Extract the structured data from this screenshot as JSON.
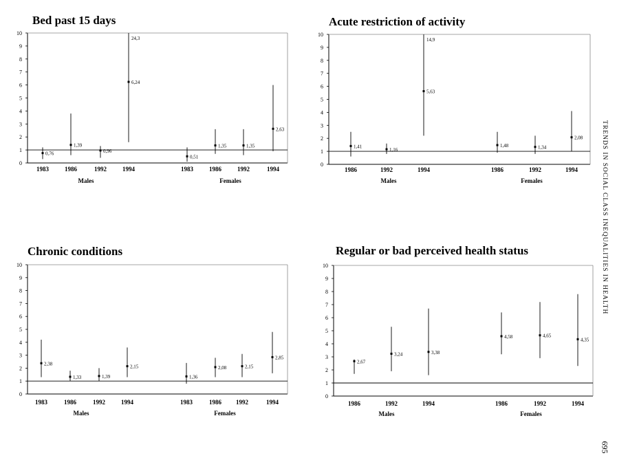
{
  "side_text": "TRENDS IN SOCIAL CLASS INEQUALITIES IN HEALTH",
  "page_number": "695",
  "chart_data": [
    {
      "type": "scatter",
      "title": "Bed past 15 days",
      "ylim": [
        0,
        10
      ],
      "yticks": [
        "0",
        "1",
        "2",
        "3",
        "4",
        "5",
        "6",
        "7",
        "8",
        "9",
        "10"
      ],
      "reference_line": 1,
      "groups": [
        {
          "name": "Males"
        },
        {
          "name": "Females"
        }
      ],
      "points": [
        {
          "group": "Males",
          "year": "1983",
          "value": 0.76,
          "label": "0,76",
          "low": 0.3,
          "high": 1.2
        },
        {
          "group": "Males",
          "year": "1986",
          "value": 1.39,
          "label": "1,39",
          "low": 0.6,
          "high": 3.8
        },
        {
          "group": "Males",
          "year": "1992",
          "value": 0.96,
          "label": "0,96",
          "low": 0.4,
          "high": 1.3
        },
        {
          "group": "Males",
          "year": "1994",
          "value": 6.24,
          "label": "6,24",
          "low": 1.6,
          "high": 10,
          "top_label": "24,3"
        },
        {
          "group": "Females",
          "year": "1983",
          "value": 0.51,
          "label": "0,51",
          "low": 0.1,
          "high": 1.2
        },
        {
          "group": "Females",
          "year": "1986",
          "value": 1.35,
          "label": "1,35",
          "low": 0.7,
          "high": 2.6
        },
        {
          "group": "Females",
          "year": "1992",
          "value": 1.35,
          "label": "1,35",
          "low": 0.6,
          "high": 2.6
        },
        {
          "group": "Females",
          "year": "1994",
          "value": 2.63,
          "label": "2,63",
          "low": 0.9,
          "high": 6.0
        }
      ]
    },
    {
      "type": "scatter",
      "title": "Acute restriction of activity",
      "ylim": [
        0,
        10
      ],
      "yticks": [
        "0",
        "1",
        "2",
        "3",
        "4",
        "5",
        "6",
        "7",
        "8",
        "9",
        "10"
      ],
      "reference_line": 1,
      "groups": [
        {
          "name": "Males"
        },
        {
          "name": "Females"
        }
      ],
      "points": [
        {
          "group": "Males",
          "year": "1986",
          "value": 1.41,
          "label": "1,41",
          "low": 0.6,
          "high": 2.5
        },
        {
          "group": "Males",
          "year": "1992",
          "value": 1.16,
          "label": "1,16",
          "low": 0.8,
          "high": 1.6
        },
        {
          "group": "Males",
          "year": "1994",
          "value": 5.63,
          "label": "5,63",
          "low": 2.2,
          "high": 10,
          "top_label": "14,9"
        },
        {
          "group": "Females",
          "year": "1986",
          "value": 1.48,
          "label": "1,48",
          "low": 0.9,
          "high": 2.5
        },
        {
          "group": "Females",
          "year": "1992",
          "value": 1.34,
          "label": "1,34",
          "low": 0.8,
          "high": 2.2
        },
        {
          "group": "Females",
          "year": "1994",
          "value": 2.08,
          "label": "2,08",
          "low": 1.0,
          "high": 4.1
        }
      ]
    },
    {
      "type": "scatter",
      "title": "Chronic conditions",
      "ylim": [
        0,
        10
      ],
      "yticks": [
        "0",
        "1",
        "2",
        "3",
        "4",
        "5",
        "6",
        "7",
        "8",
        "9",
        "10"
      ],
      "reference_line": 1,
      "groups": [
        {
          "name": "Males"
        },
        {
          "name": "Females"
        }
      ],
      "points": [
        {
          "group": "Males",
          "year": "1983",
          "value": 2.38,
          "label": "2,38",
          "low": 1.3,
          "high": 4.2
        },
        {
          "group": "Males",
          "year": "1986",
          "value": 1.33,
          "label": "1,33",
          "low": 1.0,
          "high": 1.8
        },
        {
          "group": "Males",
          "year": "1992",
          "value": 1.39,
          "label": "1,39",
          "low": 1.0,
          "high": 2.0
        },
        {
          "group": "Males",
          "year": "1994",
          "value": 2.15,
          "label": "2,15",
          "low": 1.3,
          "high": 3.6
        },
        {
          "group": "Females",
          "year": "1983",
          "value": 1.36,
          "label": "1,36",
          "low": 0.8,
          "high": 2.4
        },
        {
          "group": "Females",
          "year": "1986",
          "value": 2.08,
          "label": "2,08",
          "low": 1.3,
          "high": 2.8
        },
        {
          "group": "Females",
          "year": "1992",
          "value": 2.15,
          "label": "2,15",
          "low": 1.3,
          "high": 3.1
        },
        {
          "group": "Females",
          "year": "1994",
          "value": 2.85,
          "label": "2,85",
          "low": 1.6,
          "high": 4.8
        }
      ]
    },
    {
      "type": "scatter",
      "title": "Regular or bad perceived health status",
      "ylim": [
        0,
        10
      ],
      "yticks": [
        "0",
        "1",
        "2",
        "3",
        "4",
        "5",
        "6",
        "7",
        "8",
        "9",
        "10"
      ],
      "reference_line": 1,
      "groups": [
        {
          "name": "Males"
        },
        {
          "name": "Females"
        }
      ],
      "points": [
        {
          "group": "Males",
          "year": "1986",
          "value": 2.67,
          "label": "2,67",
          "low": 1.7,
          "high": 2.8
        },
        {
          "group": "Males",
          "year": "1992",
          "value": 3.24,
          "label": "3,24",
          "low": 1.9,
          "high": 5.3
        },
        {
          "group": "Males",
          "year": "1994",
          "value": 3.38,
          "label": "3,38",
          "low": 1.6,
          "high": 6.7
        },
        {
          "group": "Females",
          "year": "1986",
          "value": 4.58,
          "label": "4,58",
          "low": 3.2,
          "high": 6.4
        },
        {
          "group": "Females",
          "year": "1992",
          "value": 4.65,
          "label": "4,65",
          "low": 2.9,
          "high": 7.2
        },
        {
          "group": "Females",
          "year": "1994",
          "value": 4.35,
          "label": "4,35",
          "low": 2.3,
          "high": 7.8
        }
      ]
    }
  ]
}
